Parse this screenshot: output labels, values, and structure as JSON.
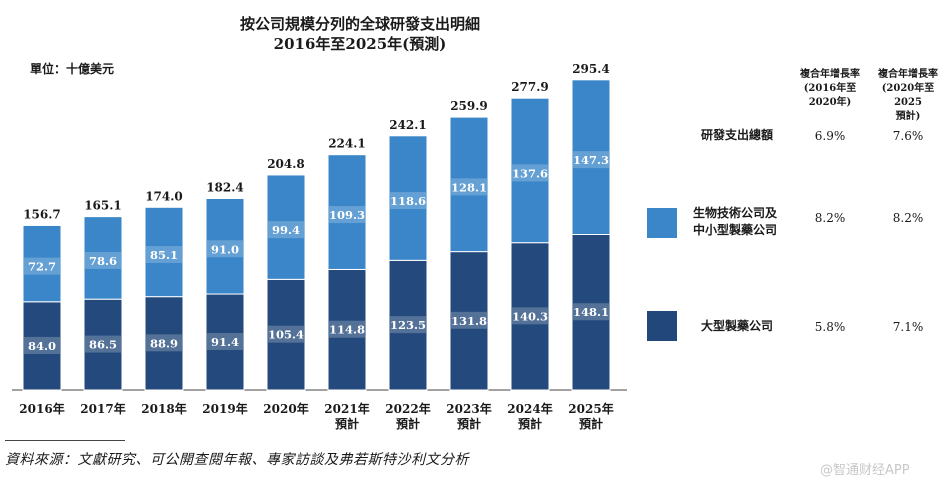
{
  "header": {
    "title_line1": "按公司規模分列的全球研發支出明細",
    "title_line2": "2016年至2025年(預測)",
    "unit": "單位：十億美元"
  },
  "chart_data": {
    "type": "bar",
    "stacked": true,
    "categories": [
      "2016年",
      "2017年",
      "2018年",
      "2019年",
      "2020年",
      "2021年\n預計",
      "2022年\n預計",
      "2023年\n預計",
      "2024年\n預計",
      "2025年\n預計"
    ],
    "series": [
      {
        "name": "大型製藥公司",
        "values": [
          84.0,
          86.5,
          88.9,
          91.4,
          105.4,
          114.8,
          123.5,
          131.8,
          140.3,
          148.1
        ]
      },
      {
        "name": "生物技術公司及中小型製藥公司",
        "values": [
          72.7,
          78.6,
          85.1,
          91.0,
          99.4,
          109.3,
          118.6,
          128.1,
          137.6,
          147.3
        ]
      }
    ],
    "totals": [
      156.7,
      165.1,
      174.0,
      182.4,
      204.8,
      224.1,
      242.1,
      259.9,
      277.9,
      295.4
    ],
    "ylim": [
      0,
      300
    ],
    "xlabel": "",
    "ylabel": ""
  },
  "cagr_table": {
    "col1_header": [
      "複合年增長率",
      "(2016年至2020年)"
    ],
    "col2_header": [
      "複合年增長率",
      "(2020年至2025",
      "預計)"
    ],
    "rows": [
      {
        "label": [
          "研發支出總額"
        ],
        "v1": "6.9%",
        "v2": "7.6%",
        "swatch": ""
      },
      {
        "label": [
          "生物技術公司及",
          "中小型製藥公司"
        ],
        "v1": "8.2%",
        "v2": "8.2%",
        "swatch": "#3a86c8"
      },
      {
        "label": [
          "大型製藥公司"
        ],
        "v1": "5.8%",
        "v2": "7.1%",
        "swatch": "#22477a"
      }
    ]
  },
  "colors": {
    "large": "#24497c",
    "bio": "#3a86c8",
    "label_box": "rgba(255,255,255,0.22)"
  },
  "footer": {
    "source": "資料來源：文獻研究、可公開查閱年報、專家訪談及弗若斯特沙利文分析",
    "watermark": "@智通财经APP"
  }
}
